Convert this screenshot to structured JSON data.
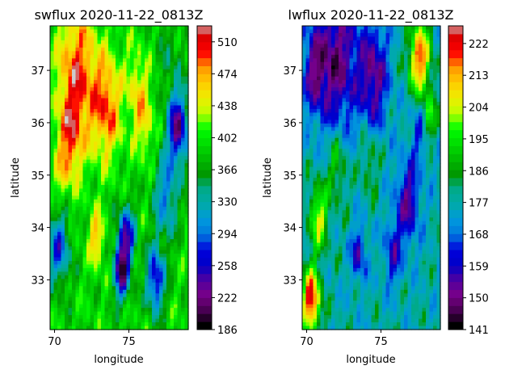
{
  "chart_data": [
    {
      "type": "heatmap",
      "title": "swflux 2020-11-22_0813Z",
      "xlabel": "longitude",
      "ylabel": "latitude",
      "xlim": [
        69.7,
        79.0
      ],
      "ylim": [
        32.05,
        37.85
      ],
      "xticks": [
        "70",
        "75"
      ],
      "xtick_values": [
        70,
        75
      ],
      "yticks": [
        "33",
        "34",
        "35",
        "36",
        "37"
      ],
      "ytick_values": [
        33,
        34,
        35,
        36,
        37
      ],
      "colorbar": {
        "min": 186,
        "max": 528,
        "ticks": [
          "186",
          "222",
          "258",
          "294",
          "330",
          "366",
          "402",
          "438",
          "474",
          "510"
        ],
        "tick_values": [
          186,
          222,
          258,
          294,
          330,
          366,
          402,
          438,
          474,
          510
        ]
      },
      "field_description": "high values (red) in the north-west and upper centre, low values (purple) along the east edge and a central band near 75E",
      "hotspots": [
        {
          "lon": 71.5,
          "lat": 36.9,
          "value": 500,
          "r": 1.3
        },
        {
          "lon": 73.5,
          "lat": 36.3,
          "value": 490,
          "r": 1.0
        },
        {
          "lon": 71.0,
          "lat": 35.6,
          "value": 470,
          "r": 0.8
        },
        {
          "lon": 76.0,
          "lat": 36.0,
          "value": 450,
          "r": 0.7
        },
        {
          "lon": 75.5,
          "lat": 36.8,
          "value": 440,
          "r": 0.7
        },
        {
          "lon": 72.8,
          "lat": 33.8,
          "value": 470,
          "r": 0.5
        },
        {
          "lon": 78.3,
          "lat": 35.9,
          "value": 230,
          "r": 0.7
        },
        {
          "lon": 74.8,
          "lat": 33.8,
          "value": 250,
          "r": 0.6
        },
        {
          "lon": 74.5,
          "lat": 33.1,
          "value": 240,
          "r": 0.5
        },
        {
          "lon": 76.8,
          "lat": 33.0,
          "value": 250,
          "r": 0.6
        },
        {
          "lon": 70.3,
          "lat": 33.6,
          "value": 280,
          "r": 0.7
        },
        {
          "lon": 70.4,
          "lat": 34.9,
          "value": 420,
          "r": 0.5
        },
        {
          "lon": 77.5,
          "lat": 34.6,
          "value": 300,
          "r": 0.8
        },
        {
          "lon": 77.8,
          "lat": 37.3,
          "value": 360,
          "r": 0.8
        }
      ]
    },
    {
      "type": "heatmap",
      "title": "lwflux 2020-11-22_0813Z",
      "xlabel": "longitude",
      "ylabel": "latitude",
      "xlim": [
        69.7,
        79.0
      ],
      "ylim": [
        32.05,
        37.85
      ],
      "xticks": [
        "70",
        "75"
      ],
      "xtick_values": [
        70,
        75
      ],
      "yticks": [
        "33",
        "34",
        "35",
        "36",
        "37"
      ],
      "ytick_values": [
        33,
        34,
        35,
        36,
        37
      ],
      "colorbar": {
        "min": 141,
        "max": 227,
        "ticks": [
          "141",
          "150",
          "159",
          "168",
          "177",
          "186",
          "195",
          "204",
          "213",
          "222"
        ],
        "tick_values": [
          141,
          150,
          159,
          168,
          177,
          186,
          195,
          204,
          213,
          222
        ]
      },
      "field_description": "low values (purple) in the north and east, high values (red) in the south-west corner and a north-east patch",
      "hotspots": [
        {
          "lon": 72.0,
          "lat": 37.2,
          "value": 150,
          "r": 1.4
        },
        {
          "lon": 74.5,
          "lat": 36.9,
          "value": 152,
          "r": 1.0
        },
        {
          "lon": 70.5,
          "lat": 37.0,
          "value": 158,
          "r": 0.8
        },
        {
          "lon": 77.8,
          "lat": 36.0,
          "value": 160,
          "r": 0.7
        },
        {
          "lon": 76.8,
          "lat": 34.5,
          "value": 155,
          "r": 0.8
        },
        {
          "lon": 75.8,
          "lat": 33.5,
          "value": 160,
          "r": 0.6
        },
        {
          "lon": 73.5,
          "lat": 33.5,
          "value": 158,
          "r": 0.5
        },
        {
          "lon": 77.6,
          "lat": 37.2,
          "value": 220,
          "r": 0.7
        },
        {
          "lon": 78.2,
          "lat": 36.1,
          "value": 205,
          "r": 0.5
        },
        {
          "lon": 70.3,
          "lat": 32.6,
          "value": 225,
          "r": 0.6
        },
        {
          "lon": 70.8,
          "lat": 34.2,
          "value": 205,
          "r": 0.6
        },
        {
          "lon": 72.0,
          "lat": 35.2,
          "value": 192,
          "r": 0.7
        },
        {
          "lon": 74.2,
          "lat": 35.3,
          "value": 188,
          "r": 0.6
        }
      ]
    }
  ]
}
